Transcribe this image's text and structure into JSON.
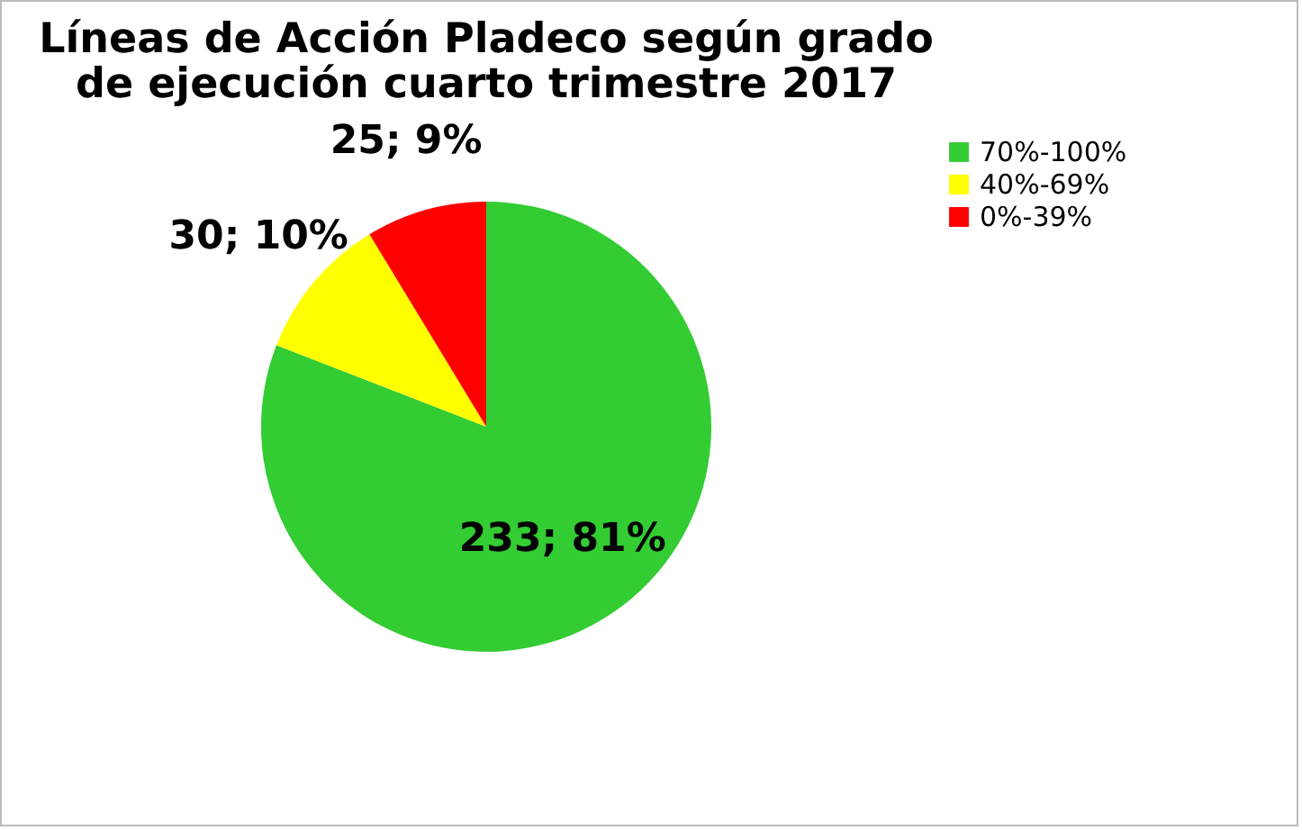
{
  "chart_data": {
    "type": "pie",
    "title": "Líneas de Acción Pladeco según grado de ejecución cuarto trimestre 2017",
    "categories": [
      "70%-100%",
      "40%-69%",
      "0%-39%"
    ],
    "values": [
      233,
      30,
      25
    ],
    "colors": [
      "#33cc33",
      "#ffff00",
      "#ff0000"
    ],
    "value_labels": [
      "233; 81%",
      "30; 10%",
      "25; 9%"
    ],
    "legend": "right"
  }
}
